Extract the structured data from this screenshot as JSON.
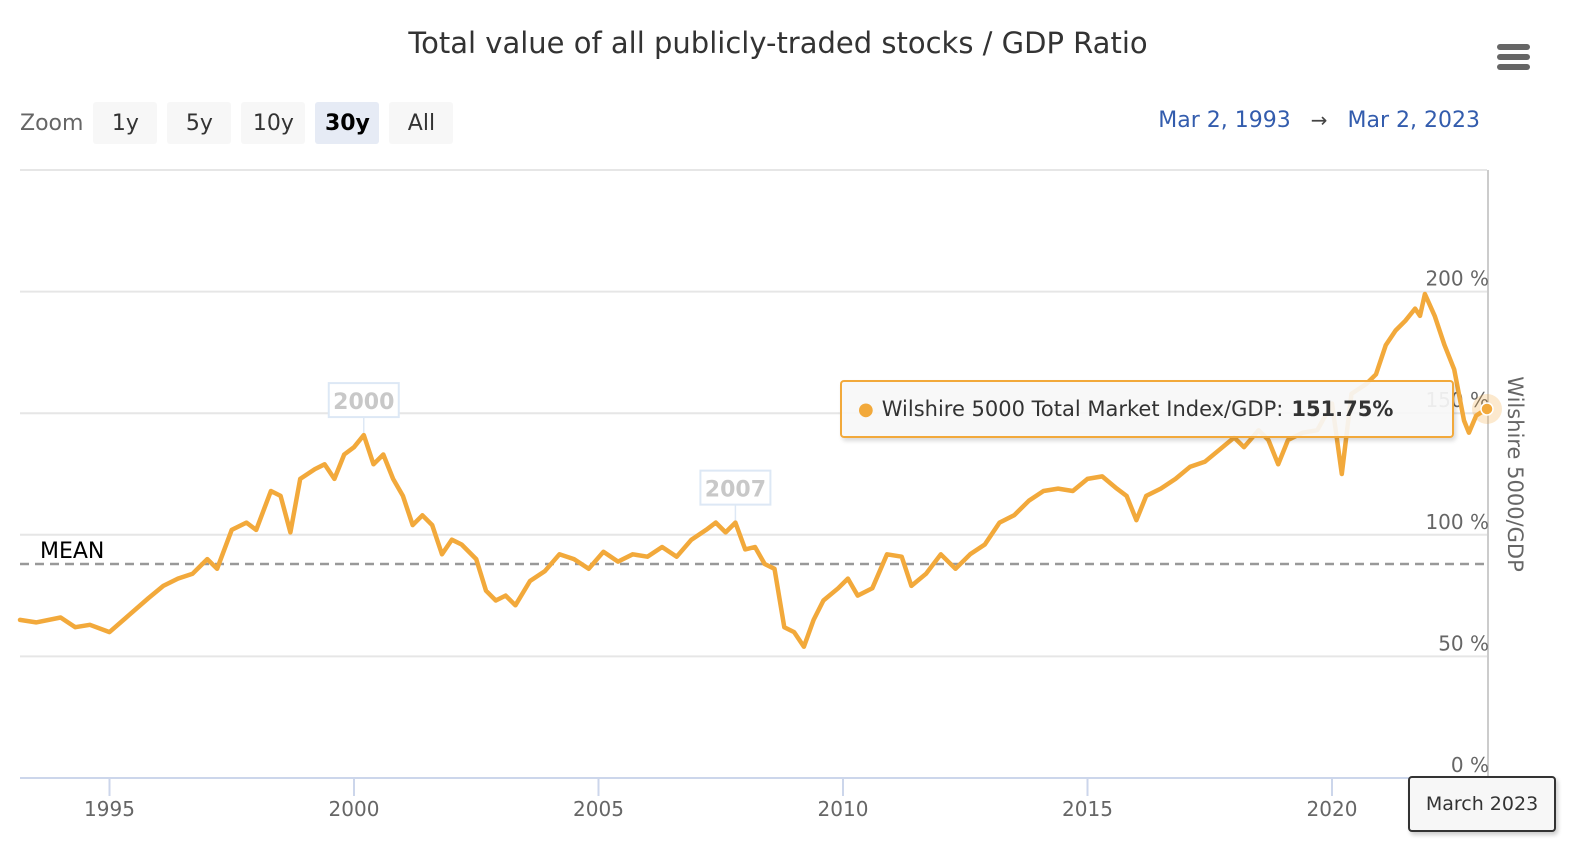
{
  "header": {
    "title": "Total value of all publicly-traded stocks / GDP Ratio",
    "menu_icon": "hamburger-menu-icon"
  },
  "zoom": {
    "label": "Zoom",
    "buttons": [
      {
        "label": "1y",
        "active": false
      },
      {
        "label": "5y",
        "active": false
      },
      {
        "label": "10y",
        "active": false
      },
      {
        "label": "30y",
        "active": true
      },
      {
        "label": "All",
        "active": false
      }
    ]
  },
  "range": {
    "from": "Mar 2, 1993",
    "arrow": "→",
    "to": "Mar 2, 2023"
  },
  "tooltip": {
    "series_label": "Wilshire 5000 Total Market Index/GDP:",
    "value": "151.75%"
  },
  "date_tooltip": "March 2023",
  "colors": {
    "series": "#f2a93b",
    "range_text": "#335cad",
    "mean_line": "#999999",
    "grid": "#e6e6e6"
  },
  "chart_data": {
    "type": "line",
    "title": "Total value of all publicly-traded stocks / GDP Ratio",
    "xlabel": "",
    "ylabel": "Wilshire 5000/GDP",
    "x_ticks": [
      "1995",
      "2000",
      "2005",
      "2010",
      "2015",
      "2020"
    ],
    "x_tick_values": [
      1995,
      2000,
      2005,
      2010,
      2015,
      2020
    ],
    "y_ticks": [
      "0 %",
      "50 %",
      "100 %",
      "150 %",
      "200 %"
    ],
    "y_tick_values": [
      0,
      50,
      100,
      150,
      200
    ],
    "xlim": [
      1993.17,
      2023.17
    ],
    "ylim": [
      0,
      250
    ],
    "grid": true,
    "y_axis_side": "right",
    "mean": {
      "label": "MEAN",
      "value": 88
    },
    "flags": [
      {
        "label": "2000",
        "x": 2000.2,
        "y": 141
      },
      {
        "label": "2007",
        "x": 2007.8,
        "y": 105
      }
    ],
    "series": [
      {
        "name": "Wilshire 5000 Total Market Index/GDP",
        "x": [
          1993.17,
          1993.5,
          1994.0,
          1994.3,
          1994.6,
          1995.0,
          1995.4,
          1995.8,
          1996.1,
          1996.4,
          1996.7,
          1997.0,
          1997.2,
          1997.5,
          1997.8,
          1998.0,
          1998.3,
          1998.5,
          1998.7,
          1998.9,
          1999.2,
          1999.4,
          1999.6,
          1999.8,
          2000.0,
          2000.2,
          2000.4,
          2000.6,
          2000.8,
          2001.0,
          2001.2,
          2001.4,
          2001.6,
          2001.8,
          2002.0,
          2002.2,
          2002.5,
          2002.7,
          2002.9,
          2003.1,
          2003.3,
          2003.6,
          2003.9,
          2004.2,
          2004.5,
          2004.8,
          2005.1,
          2005.4,
          2005.7,
          2006.0,
          2006.3,
          2006.6,
          2006.9,
          2007.2,
          2007.4,
          2007.6,
          2007.8,
          2008.0,
          2008.2,
          2008.4,
          2008.6,
          2008.8,
          2009.0,
          2009.2,
          2009.4,
          2009.6,
          2009.9,
          2010.1,
          2010.3,
          2010.6,
          2010.9,
          2011.2,
          2011.4,
          2011.7,
          2012.0,
          2012.3,
          2012.6,
          2012.9,
          2013.2,
          2013.5,
          2013.8,
          2014.1,
          2014.4,
          2014.7,
          2015.0,
          2015.3,
          2015.6,
          2015.8,
          2016.0,
          2016.2,
          2016.5,
          2016.8,
          2017.1,
          2017.4,
          2017.7,
          2018.0,
          2018.2,
          2018.5,
          2018.7,
          2018.9,
          2019.1,
          2019.4,
          2019.7,
          2020.0,
          2020.2,
          2020.4,
          2020.7,
          2020.9,
          2021.1,
          2021.3,
          2021.5,
          2021.7,
          2021.8,
          2021.9,
          2022.1,
          2022.3,
          2022.5,
          2022.7,
          2022.8,
          2022.95,
          2023.1,
          2023.17
        ],
        "values": [
          65,
          64,
          66,
          62,
          63,
          60,
          67,
          74,
          79,
          82,
          84,
          90,
          86,
          102,
          105,
          102,
          118,
          116,
          101,
          123,
          127,
          129,
          123,
          133,
          136,
          141,
          129,
          133,
          123,
          116,
          104,
          108,
          104,
          92,
          98,
          96,
          90,
          77,
          73,
          75,
          71,
          81,
          85,
          92,
          90,
          86,
          93,
          89,
          92,
          91,
          95,
          91,
          98,
          102,
          105,
          101,
          105,
          94,
          95,
          88,
          86,
          62,
          60,
          54,
          65,
          73,
          78,
          82,
          75,
          78,
          92,
          91,
          79,
          84,
          92,
          86,
          92,
          96,
          105,
          108,
          114,
          118,
          119,
          118,
          123,
          124,
          119,
          116,
          106,
          116,
          119,
          123,
          128,
          130,
          135,
          140,
          136,
          143,
          139,
          129,
          139,
          142,
          143,
          154,
          125,
          158,
          162,
          166,
          178,
          184,
          188,
          193,
          190,
          199,
          190,
          178,
          168,
          147,
          142,
          149,
          151,
          151.75
        ]
      }
    ],
    "highlighted_point": {
      "x": 2023.17,
      "label": "March 2023",
      "value": 151.75
    }
  }
}
